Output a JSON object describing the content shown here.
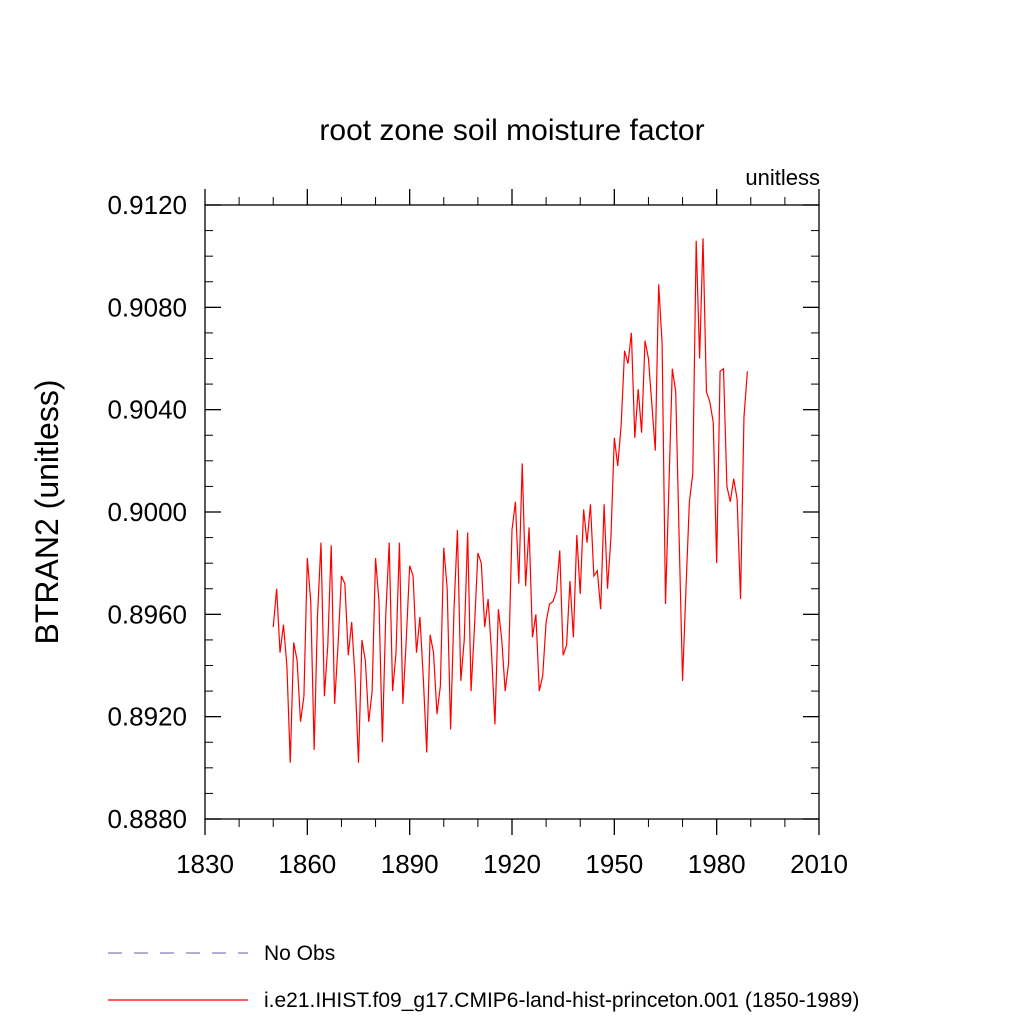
{
  "chart_data": {
    "type": "line",
    "title": "root zone soil moisture factor",
    "units_label": "unitless",
    "ylabel": "BTRAN2  (unitless)",
    "xlabel": "",
    "xlim": [
      1830,
      2010
    ],
    "ylim": [
      0.888,
      0.912
    ],
    "xticks": [
      "1830",
      "1860",
      "1890",
      "1920",
      "1950",
      "1980",
      "2010"
    ],
    "yticks": [
      "0.8880",
      "0.8920",
      "0.8960",
      "0.9000",
      "0.9040",
      "0.9080",
      "0.9120"
    ],
    "grid": false,
    "legend_position": "bottom",
    "series": [
      {
        "name": "No Obs",
        "color": "#7f7fbf",
        "style": "dashed",
        "x": [],
        "values": []
      },
      {
        "name": "i.e21.IHIST.f09_g17.CMIP6-land-hist-princeton.001 (1850-1989)",
        "color": "#ff0000",
        "style": "solid",
        "x": [
          1850,
          1851,
          1852,
          1853,
          1854,
          1855,
          1856,
          1857,
          1858,
          1859,
          1860,
          1861,
          1862,
          1863,
          1864,
          1865,
          1866,
          1867,
          1868,
          1869,
          1870,
          1871,
          1872,
          1873,
          1874,
          1875,
          1876,
          1877,
          1878,
          1879,
          1880,
          1881,
          1882,
          1883,
          1884,
          1885,
          1886,
          1887,
          1888,
          1889,
          1890,
          1891,
          1892,
          1893,
          1894,
          1895,
          1896,
          1897,
          1898,
          1899,
          1900,
          1901,
          1902,
          1903,
          1904,
          1905,
          1906,
          1907,
          1908,
          1909,
          1910,
          1911,
          1912,
          1913,
          1914,
          1915,
          1916,
          1917,
          1918,
          1919,
          1920,
          1921,
          1922,
          1923,
          1924,
          1925,
          1926,
          1927,
          1928,
          1929,
          1930,
          1931,
          1932,
          1933,
          1934,
          1935,
          1936,
          1937,
          1938,
          1939,
          1940,
          1941,
          1942,
          1943,
          1944,
          1945,
          1946,
          1947,
          1948,
          1949,
          1950,
          1951,
          1952,
          1953,
          1954,
          1955,
          1956,
          1957,
          1958,
          1959,
          1960,
          1961,
          1962,
          1963,
          1964,
          1965,
          1966,
          1967,
          1968,
          1969,
          1970,
          1971,
          1972,
          1973,
          1974,
          1975,
          1976,
          1977,
          1978,
          1979,
          1980,
          1981,
          1982,
          1983,
          1984,
          1985,
          1986,
          1987,
          1988,
          1989
        ],
        "values": [
          0.8955,
          0.897,
          0.8945,
          0.8956,
          0.894,
          0.8902,
          0.8949,
          0.8942,
          0.8918,
          0.8928,
          0.8982,
          0.8965,
          0.8907,
          0.896,
          0.8988,
          0.8928,
          0.8948,
          0.8987,
          0.8925,
          0.8948,
          0.8975,
          0.8972,
          0.8944,
          0.8957,
          0.8935,
          0.8902,
          0.895,
          0.8942,
          0.8918,
          0.893,
          0.8982,
          0.8965,
          0.891,
          0.896,
          0.8988,
          0.893,
          0.8945,
          0.8988,
          0.8925,
          0.895,
          0.8979,
          0.8975,
          0.8945,
          0.8959,
          0.8935,
          0.8906,
          0.8952,
          0.8945,
          0.8921,
          0.8932,
          0.8986,
          0.897,
          0.8915,
          0.8962,
          0.8993,
          0.8934,
          0.895,
          0.8992,
          0.893,
          0.8955,
          0.8984,
          0.898,
          0.8955,
          0.8966,
          0.8945,
          0.8917,
          0.8962,
          0.895,
          0.893,
          0.8941,
          0.8993,
          0.9004,
          0.8972,
          0.9019,
          0.8971,
          0.8994,
          0.8951,
          0.896,
          0.893,
          0.8936,
          0.8957,
          0.8964,
          0.8965,
          0.8969,
          0.8985,
          0.8944,
          0.8948,
          0.8973,
          0.8951,
          0.8991,
          0.8968,
          0.9001,
          0.8988,
          0.9003,
          0.8975,
          0.8977,
          0.8962,
          0.9003,
          0.897,
          0.899,
          0.9029,
          0.9018,
          0.9034,
          0.9063,
          0.9058,
          0.907,
          0.9029,
          0.9048,
          0.9031,
          0.9067,
          0.906,
          0.9042,
          0.9024,
          0.9089,
          0.9066,
          0.8964,
          0.901,
          0.9056,
          0.9047,
          0.899,
          0.8934,
          0.897,
          0.9004,
          0.9015,
          0.9106,
          0.906,
          0.9107,
          0.9047,
          0.9043,
          0.9035,
          0.898,
          0.9055,
          0.9056,
          0.901,
          0.9004,
          0.9013,
          0.9005,
          0.8966,
          0.9037,
          0.9055
        ]
      }
    ]
  }
}
